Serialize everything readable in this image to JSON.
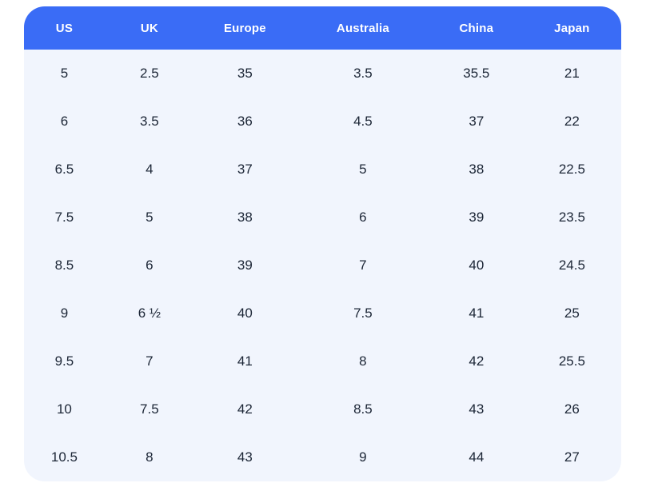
{
  "table": {
    "title": "shoe-size-conversion-table",
    "headers": [
      "US",
      "UK",
      "Europe",
      "Australia",
      "China",
      "Japan"
    ],
    "rows": [
      [
        "5",
        "2.5",
        "35",
        "3.5",
        "35.5",
        "21"
      ],
      [
        "6",
        "3.5",
        "36",
        "4.5",
        "37",
        "22"
      ],
      [
        "6.5",
        "4",
        "37",
        "5",
        "38",
        "22.5"
      ],
      [
        "7.5",
        "5",
        "38",
        "6",
        "39",
        "23.5"
      ],
      [
        "8.5",
        "6",
        "39",
        "7",
        "40",
        "24.5"
      ],
      [
        "9",
        "6 ½",
        "40",
        "7.5",
        "41",
        "25"
      ],
      [
        "9.5",
        "7",
        "41",
        "8",
        "42",
        "25.5"
      ],
      [
        "10",
        "7.5",
        "42",
        "8.5",
        "43",
        "26"
      ],
      [
        "10.5",
        "8",
        "43",
        "9",
        "44",
        "27"
      ]
    ],
    "colors": {
      "header_bg": "#3a6cf6",
      "header_text": "#ffffff",
      "body_bg": "#f1f5fd",
      "body_text": "#1c2636"
    }
  }
}
